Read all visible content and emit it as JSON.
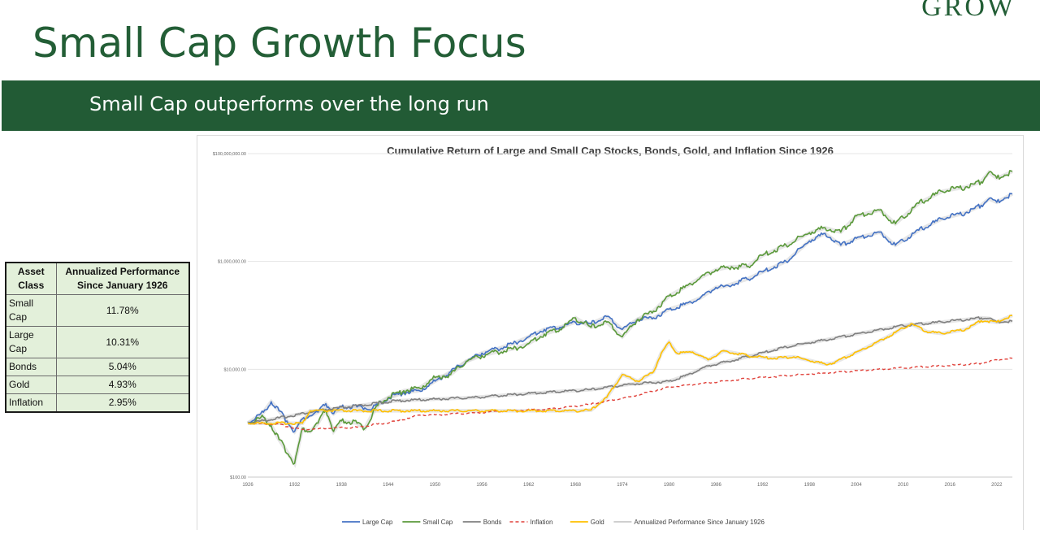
{
  "brand": "GROW",
  "page_title": "Small Cap Growth Focus",
  "banner_text": "Small Cap outperforms over the long run",
  "table": {
    "headers": [
      "Asset Class",
      "Annualized Performance Since January 1926"
    ],
    "rows": [
      [
        "Small Cap",
        "11.78%"
      ],
      [
        "Large Cap",
        "10.31%"
      ],
      [
        "Bonds",
        "5.04%"
      ],
      [
        "Gold",
        "4.93%"
      ],
      [
        "Inflation",
        "2.95%"
      ]
    ]
  },
  "chart_data": {
    "type": "line",
    "title": "Cumulative Return of Large and Small Cap Stocks, Bonds, Gold, and Inflation Since 1926",
    "y_scale": "log",
    "ylim": [
      100,
      100000000
    ],
    "xlim": [
      1926,
      2024
    ],
    "y_ticks": [
      {
        "value": 100,
        "label": "$100.00"
      },
      {
        "value": 10000,
        "label": "$10,000.00"
      },
      {
        "value": 1000000,
        "label": "$1,000,000.00"
      },
      {
        "value": 100000000,
        "label": "$100,000,000.00"
      }
    ],
    "x_ticks": [
      1926,
      1932,
      1938,
      1944,
      1950,
      1956,
      1962,
      1968,
      1974,
      1980,
      1986,
      1992,
      1998,
      2004,
      2010,
      2016,
      2022
    ],
    "legend_position": "bottom",
    "series": [
      {
        "name": "Large Cap",
        "color": "#4472c4",
        "dash": false,
        "points": [
          [
            1926,
            1000
          ],
          [
            1928,
            1600
          ],
          [
            1929,
            2500
          ],
          [
            1930,
            1700
          ],
          [
            1931,
            1100
          ],
          [
            1932,
            700
          ],
          [
            1933,
            1200
          ],
          [
            1935,
            1600
          ],
          [
            1936,
            2300
          ],
          [
            1937,
            1500
          ],
          [
            1938,
            2000
          ],
          [
            1940,
            2000
          ],
          [
            1942,
            1900
          ],
          [
            1944,
            2900
          ],
          [
            1946,
            3700
          ],
          [
            1948,
            4000
          ],
          [
            1950,
            6000
          ],
          [
            1952,
            9000
          ],
          [
            1954,
            14000
          ],
          [
            1956,
            20000
          ],
          [
            1958,
            24000
          ],
          [
            1960,
            30000
          ],
          [
            1962,
            40000
          ],
          [
            1964,
            55000
          ],
          [
            1966,
            60000
          ],
          [
            1968,
            75000
          ],
          [
            1970,
            70000
          ],
          [
            1972,
            95000
          ],
          [
            1974,
            55000
          ],
          [
            1976,
            85000
          ],
          [
            1978,
            90000
          ],
          [
            1980,
            130000
          ],
          [
            1982,
            160000
          ],
          [
            1984,
            210000
          ],
          [
            1986,
            330000
          ],
          [
            1987,
            340000
          ],
          [
            1990,
            470000
          ],
          [
            1992,
            640000
          ],
          [
            1995,
            1000000
          ],
          [
            1998,
            2400000
          ],
          [
            2000,
            3300000
          ],
          [
            2002,
            2000000
          ],
          [
            2004,
            2700000
          ],
          [
            2007,
            3500000
          ],
          [
            2009,
            2000000
          ],
          [
            2012,
            3800000
          ],
          [
            2015,
            6200000
          ],
          [
            2018,
            8000000
          ],
          [
            2020,
            11000000
          ],
          [
            2021,
            14500000
          ],
          [
            2022,
            12500000
          ],
          [
            2023,
            15000000
          ],
          [
            2024,
            18000000
          ]
        ]
      },
      {
        "name": "Small Cap",
        "color": "#5b9a3b",
        "dash": false,
        "points": [
          [
            1926,
            1000
          ],
          [
            1928,
            1300
          ],
          [
            1929,
            900
          ],
          [
            1930,
            500
          ],
          [
            1932,
            180
          ],
          [
            1933,
            800
          ],
          [
            1934,
            700
          ],
          [
            1935,
            1000
          ],
          [
            1936,
            1800
          ],
          [
            1937,
            700
          ],
          [
            1938,
            1100
          ],
          [
            1940,
            1000
          ],
          [
            1941,
            800
          ],
          [
            1942,
            1500
          ],
          [
            1943,
            2500
          ],
          [
            1944,
            3000
          ],
          [
            1946,
            4000
          ],
          [
            1948,
            4500
          ],
          [
            1950,
            7000
          ],
          [
            1952,
            8000
          ],
          [
            1954,
            14000
          ],
          [
            1956,
            18000
          ],
          [
            1958,
            21000
          ],
          [
            1960,
            24000
          ],
          [
            1962,
            30000
          ],
          [
            1964,
            45000
          ],
          [
            1966,
            55000
          ],
          [
            1968,
            90000
          ],
          [
            1970,
            60000
          ],
          [
            1972,
            75000
          ],
          [
            1974,
            40000
          ],
          [
            1976,
            85000
          ],
          [
            1978,
            120000
          ],
          [
            1980,
            230000
          ],
          [
            1982,
            330000
          ],
          [
            1984,
            500000
          ],
          [
            1986,
            700000
          ],
          [
            1988,
            800000
          ],
          [
            1990,
            800000
          ],
          [
            1992,
            1300000
          ],
          [
            1995,
            2000000
          ],
          [
            1998,
            3400000
          ],
          [
            2000,
            4200000
          ],
          [
            2002,
            3500000
          ],
          [
            2004,
            7000000
          ],
          [
            2007,
            9000000
          ],
          [
            2009,
            5000000
          ],
          [
            2012,
            12000000
          ],
          [
            2015,
            20000000
          ],
          [
            2018,
            24000000
          ],
          [
            2020,
            30000000
          ],
          [
            2021,
            45000000
          ],
          [
            2022,
            35000000
          ],
          [
            2023,
            40000000
          ],
          [
            2024,
            47000000
          ]
        ]
      },
      {
        "name": "Bonds",
        "color": "#808080",
        "dash": false,
        "points": [
          [
            1926,
            1000
          ],
          [
            1930,
            1250
          ],
          [
            1935,
            1700
          ],
          [
            1940,
            2100
          ],
          [
            1945,
            2600
          ],
          [
            1950,
            2800
          ],
          [
            1955,
            3000
          ],
          [
            1960,
            3400
          ],
          [
            1965,
            3800
          ],
          [
            1970,
            4200
          ],
          [
            1975,
            5300
          ],
          [
            1980,
            6000
          ],
          [
            1982,
            7500
          ],
          [
            1985,
            11500
          ],
          [
            1990,
            17000
          ],
          [
            1995,
            26000
          ],
          [
            2000,
            35000
          ],
          [
            2005,
            48000
          ],
          [
            2010,
            65000
          ],
          [
            2015,
            75000
          ],
          [
            2020,
            90000
          ],
          [
            2021,
            88000
          ],
          [
            2022,
            75000
          ],
          [
            2024,
            78000
          ]
        ]
      },
      {
        "name": "Inflation",
        "color": "#e0413a",
        "dash": true,
        "points": [
          [
            1926,
            1000
          ],
          [
            1930,
            950
          ],
          [
            1933,
            760
          ],
          [
            1940,
            840
          ],
          [
            1945,
            1080
          ],
          [
            1948,
            1420
          ],
          [
            1950,
            1430
          ],
          [
            1955,
            1550
          ],
          [
            1960,
            1720
          ],
          [
            1965,
            1840
          ],
          [
            1970,
            2250
          ],
          [
            1975,
            3080
          ],
          [
            1980,
            4700
          ],
          [
            1985,
            5600
          ],
          [
            1990,
            6700
          ],
          [
            1995,
            7600
          ],
          [
            2000,
            8500
          ],
          [
            2005,
            9600
          ],
          [
            2010,
            10700
          ],
          [
            2015,
            11500
          ],
          [
            2020,
            12900
          ],
          [
            2022,
            15000
          ],
          [
            2024,
            16000
          ]
        ]
      },
      {
        "name": "Gold",
        "color": "#ffc000",
        "dash": false,
        "points": [
          [
            1926,
            1000
          ],
          [
            1933,
            1000
          ],
          [
            1934,
            1700
          ],
          [
            1940,
            1700
          ],
          [
            1950,
            1700
          ],
          [
            1960,
            1700
          ],
          [
            1968,
            1700
          ],
          [
            1970,
            1750
          ],
          [
            1972,
            3000
          ],
          [
            1974,
            8000
          ],
          [
            1976,
            6000
          ],
          [
            1978,
            9000
          ],
          [
            1979,
            20000
          ],
          [
            1980,
            32000
          ],
          [
            1981,
            20000
          ],
          [
            1983,
            21000
          ],
          [
            1985,
            15000
          ],
          [
            1987,
            22000
          ],
          [
            1990,
            18000
          ],
          [
            1993,
            16000
          ],
          [
            1996,
            17000
          ],
          [
            2000,
            12500
          ],
          [
            2001,
            13000
          ],
          [
            2005,
            24000
          ],
          [
            2008,
            40000
          ],
          [
            2011,
            70000
          ],
          [
            2013,
            50000
          ],
          [
            2015,
            46000
          ],
          [
            2018,
            55000
          ],
          [
            2020,
            80000
          ],
          [
            2022,
            75000
          ],
          [
            2024,
            100000
          ]
        ]
      }
    ],
    "legend": [
      "Large Cap",
      "Small Cap",
      "Bonds",
      "Inflation",
      "Gold",
      "Annualized Performance Since January 1926"
    ]
  }
}
